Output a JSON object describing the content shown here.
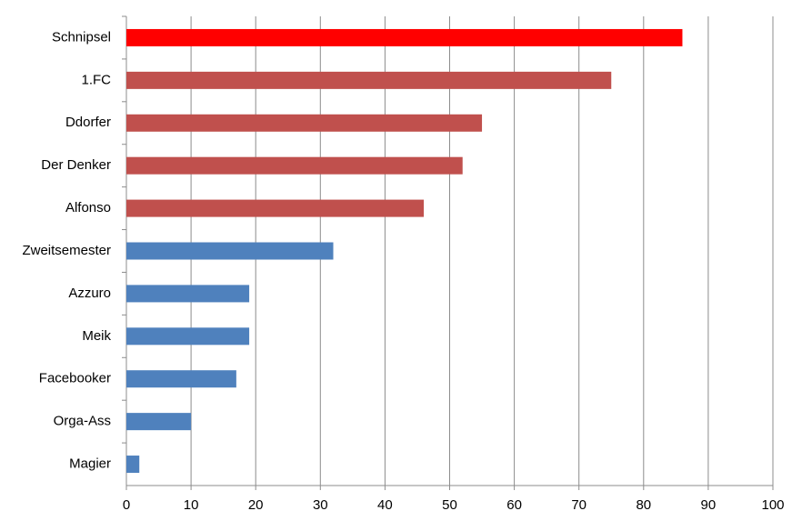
{
  "chart_data": {
    "type": "hbar",
    "categories": [
      "Schnipsel",
      "1.FC",
      "Ddorfer",
      "Der Denker",
      "Alfonso",
      "Zweitsemester",
      "Azzuro",
      "Meik",
      "Facebooker",
      "Orga-Ass",
      "Magier"
    ],
    "values": [
      86,
      75,
      55,
      52,
      46,
      32,
      19,
      19,
      17,
      10,
      2
    ],
    "colors": [
      "#ff0000",
      "#c0504d",
      "#c0504d",
      "#c0504d",
      "#c0504d",
      "#4f81bd",
      "#4f81bd",
      "#4f81bd",
      "#4f81bd",
      "#4f81bd",
      "#4f81bd"
    ],
    "xlim": [
      0,
      100
    ],
    "xticks": [
      0,
      10,
      20,
      30,
      40,
      50,
      60,
      70,
      80,
      90,
      100
    ],
    "grid": true
  }
}
